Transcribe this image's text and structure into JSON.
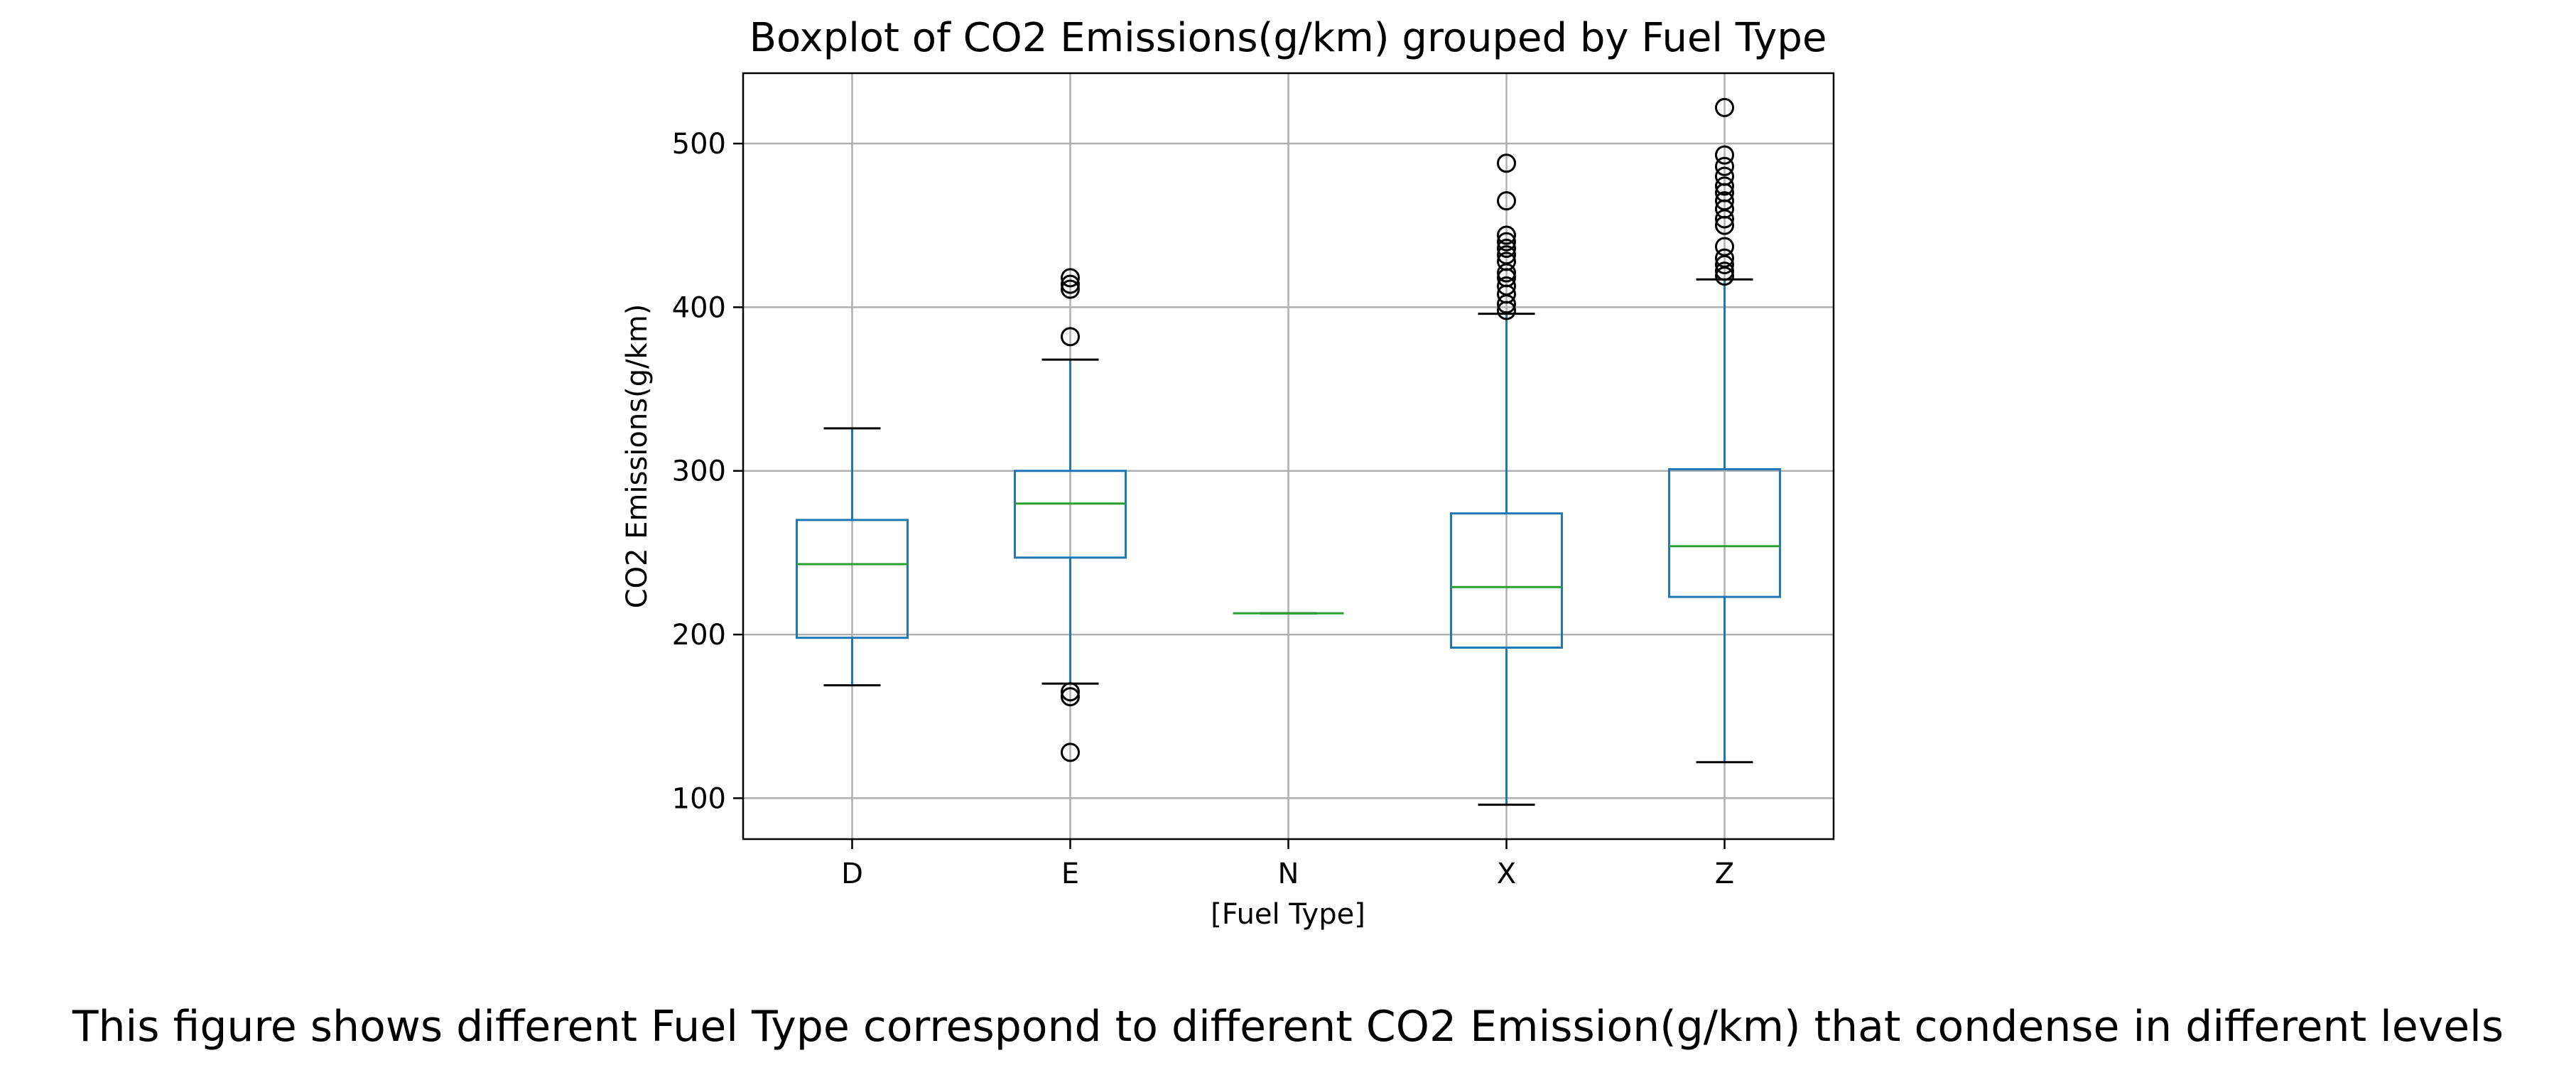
{
  "chart_data": {
    "type": "box",
    "title": "Boxplot of CO2 Emissions(g/km) grouped by Fuel Type",
    "xlabel": "[Fuel Type]",
    "ylabel": "CO2 Emissions(g/km)",
    "ylim": [
      75,
      543
    ],
    "yticks": [
      100,
      200,
      300,
      400,
      500
    ],
    "grid": true,
    "categories": [
      "D",
      "E",
      "N",
      "X",
      "Z"
    ],
    "boxes": [
      {
        "category": "D",
        "q1": 198,
        "median": 243,
        "q3": 270,
        "whisker_low": 169,
        "whisker_high": 326,
        "outliers": []
      },
      {
        "category": "E",
        "q1": 247,
        "median": 280,
        "q3": 300,
        "whisker_low": 170,
        "whisker_high": 368,
        "outliers": [
          128,
          162,
          165,
          382,
          411,
          414,
          418
        ]
      },
      {
        "category": "N",
        "q1": 213,
        "median": 213,
        "q3": 213,
        "whisker_low": 213,
        "whisker_high": 213,
        "outliers": []
      },
      {
        "category": "X",
        "q1": 192,
        "median": 229,
        "q3": 274,
        "whisker_low": 96,
        "whisker_high": 396,
        "outliers": [
          398,
          402,
          408,
          413,
          418,
          421,
          428,
          432,
          436,
          440,
          444,
          465,
          488
        ]
      },
      {
        "category": "Z",
        "q1": 223,
        "median": 254,
        "q3": 301,
        "whisker_low": 122,
        "whisker_high": 417,
        "outliers": [
          419,
          422,
          426,
          430,
          437,
          450,
          454,
          460,
          465,
          470,
          474,
          480,
          486,
          493,
          522
        ]
      }
    ],
    "colors": {
      "box": "#1f77b4",
      "median": "#2ca02c",
      "cap": "#000000",
      "grid": "#b0b0b0",
      "outlier": "#000000"
    }
  },
  "caption": "This figure shows different Fuel Type correspond to different CO2 Emission(g/km) that condense in different levels"
}
